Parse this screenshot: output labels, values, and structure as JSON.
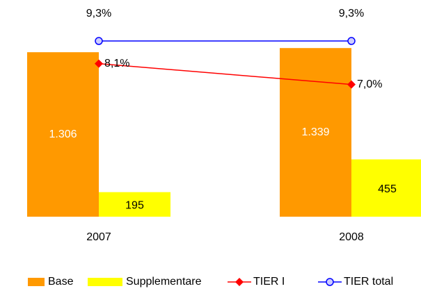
{
  "chart_data": {
    "type": "bar",
    "categories": [
      "2007",
      "2008"
    ],
    "series": [
      {
        "name": "Base",
        "color": "#ff9900",
        "values": [
          1306,
          1339
        ],
        "value_labels": [
          "1.306",
          "1.339"
        ]
      },
      {
        "name": "Supplementare",
        "color": "#ffff00",
        "values": [
          195,
          455
        ]
      },
      {
        "name": "TIER I",
        "type": "line",
        "axis": "y2",
        "color": "#ff0000",
        "values": [
          8.1,
          7.0
        ],
        "value_labels": [
          "8,1%",
          "7,0%"
        ]
      },
      {
        "name": "TIER total",
        "type": "line",
        "axis": "y2",
        "color": "#0000ff",
        "values": [
          9.3,
          9.3
        ],
        "value_labels": [
          "9,3%",
          "9,3%"
        ]
      }
    ],
    "ylim": [
      0,
      1500
    ],
    "y2lim": [
      0,
      10
    ],
    "legend": "bottom"
  }
}
